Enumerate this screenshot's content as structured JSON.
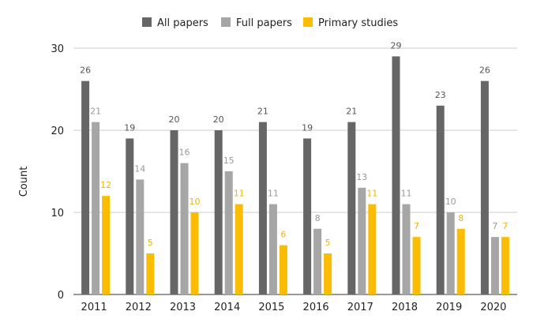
{
  "chart_data": {
    "type": "bar",
    "title": "",
    "xlabel": "",
    "ylabel": "Count",
    "ylim": [
      0,
      30
    ],
    "yticks": [
      0,
      10,
      20,
      30
    ],
    "grid": true,
    "legend_position": "top-center",
    "categories": [
      "2011",
      "2012",
      "2013",
      "2014",
      "2015",
      "2016",
      "2017",
      "2018",
      "2019",
      "2020"
    ],
    "series": [
      {
        "name": "All papers",
        "color": "#666666",
        "label_color": "#555555",
        "values": [
          26,
          19,
          20,
          20,
          21,
          19,
          21,
          29,
          23,
          26
        ]
      },
      {
        "name": "Full papers",
        "color": "#a6a6a6",
        "label_color": "#999999",
        "values": [
          21,
          14,
          16,
          15,
          11,
          8,
          13,
          11,
          10,
          7
        ]
      },
      {
        "name": "Primary studies",
        "color": "#fbbc04",
        "label_color": "#f2b500",
        "values": [
          12,
          5,
          10,
          11,
          6,
          5,
          11,
          7,
          8,
          7
        ]
      }
    ]
  }
}
